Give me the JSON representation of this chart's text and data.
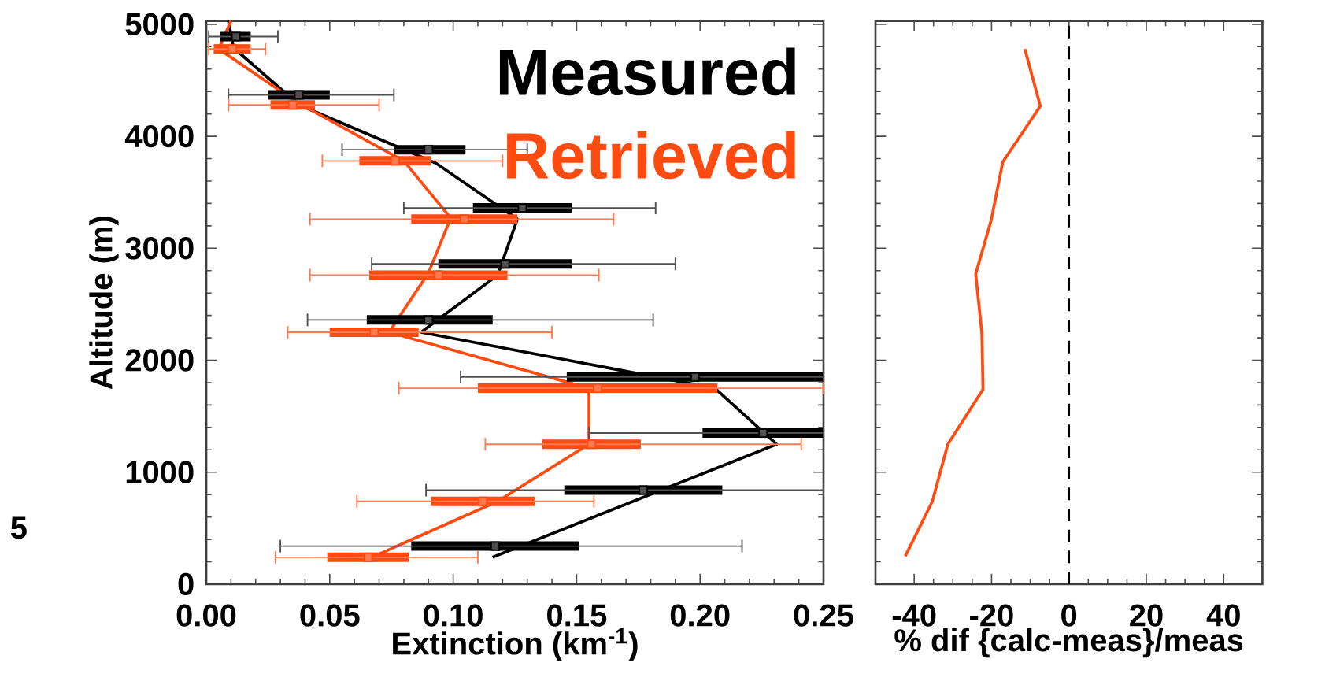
{
  "chart_data": [
    {
      "type": "line",
      "xlabel": "Extinction (km$^{-1}$)",
      "ylabel": "Altitude (m)",
      "xlim": [
        0,
        0.25
      ],
      "xticks": [
        {
          "value": 0,
          "label": "0.00"
        },
        0.05,
        {
          "value": 0.1,
          "label": "0.10"
        },
        0.15,
        {
          "value": 0.2,
          "label": "0.20"
        },
        0.25
      ],
      "ylim": [
        0,
        5030
      ],
      "yticks": [
        0,
        1000,
        2000,
        3000,
        4000,
        5000
      ],
      "legend": "top right",
      "marker": "none",
      "annotations": [
        "5"
      ],
      "series": [
        {
          "name": "Measured",
          "color": "#000000",
          "x": [
            0.009,
            0.011,
            0.0376,
            0.093,
            0.126,
            0.118,
            0.087,
            0.206,
            0.231,
            0.116
          ],
          "values": [
            5030,
            4790,
            4280,
            3760,
            3260,
            2760,
            2250,
            1750,
            1250,
            240
          ]
        },
        {
          "name": "Retrieved",
          "color": "#ff4a10",
          "x": [
            0.01,
            0.005,
            0.037,
            0.08,
            0.099,
            0.09,
            0.074,
            0.155,
            0.155,
            0.118,
            0.067
          ],
          "values": [
            5030,
            4780,
            4300,
            3780,
            3270,
            2780,
            2250,
            1750,
            1250,
            740,
            240
          ]
        },
        {
          "type": "scatter",
          "marker": "square",
          "color": "#000000",
          "x": [
            0.012,
            0.0375,
            0.09,
            0.128,
            0.121,
            0.09,
            0.198,
            0.2255,
            0.177,
            0.117
          ],
          "values": [
            4890,
            4370,
            3880,
            3360,
            2860,
            2360,
            1850,
            1350,
            840,
            340
          ],
          "xerrors": [
            [
              0.0057,
              0.018
            ],
            [
              0.025,
              0.05
            ],
            [
              0.076,
              0.105
            ],
            [
              0.108,
              0.148
            ],
            [
              0.094,
              0.148
            ],
            [
              0.065,
              0.116
            ],
            [
              0.146,
              0.25
            ],
            [
              0.201,
              0.25
            ],
            [
              0.145,
              0.209
            ],
            [
              0.083,
              0.151
            ]
          ]
        },
        {
          "type": "scatter",
          "marker": "square",
          "color": "#505050",
          "x": [
            0.012,
            0.0375,
            0.09,
            0.128,
            0.121,
            0.09,
            0.198,
            0.2255,
            0.177,
            0.117
          ],
          "values": [
            4890,
            4370,
            3880,
            3360,
            2860,
            2360,
            1850,
            1350,
            840,
            340
          ],
          "xerrors": [
            [
              0.001,
              0.029
            ],
            [
              0.009,
              0.076
            ],
            [
              0.055,
              0.13
            ],
            [
              0.08,
              0.182
            ],
            [
              0.067,
              0.19
            ],
            [
              0.041,
              0.181
            ],
            [
              0.103,
              0.25
            ],
            [
              0.155,
              0.25
            ],
            [
              0.089,
              0.25
            ],
            [
              0.03,
              0.217
            ]
          ]
        },
        {
          "type": "scatter",
          "marker": "square",
          "color": "#ff4a10",
          "x": [
            0.0105,
            0.035,
            0.0765,
            0.1045,
            0.094,
            0.068,
            0.1585,
            0.156,
            0.112,
            0.0655
          ],
          "values": [
            4780,
            4280,
            3780,
            3260,
            2760,
            2250,
            1750,
            1250,
            740,
            240
          ],
          "xerrors": [
            [
              0.003,
              0.018
            ],
            [
              0.026,
              0.044
            ],
            [
              0.062,
              0.091
            ],
            [
              0.083,
              0.126
            ],
            [
              0.066,
              0.122
            ],
            [
              0.05,
              0.086
            ],
            [
              0.11,
              0.207
            ],
            [
              0.136,
              0.176
            ],
            [
              0.091,
              0.133
            ],
            [
              0.049,
              0.082
            ]
          ]
        },
        {
          "type": "scatter",
          "marker": "square",
          "color": "#ff7a50",
          "x": [
            0.0105,
            0.035,
            0.0765,
            0.1045,
            0.094,
            0.068,
            0.1585,
            0.156,
            0.112,
            0.0655
          ],
          "values": [
            4780,
            4280,
            3780,
            3260,
            2760,
            2250,
            1750,
            1250,
            740,
            240
          ],
          "xerrors": [
            [
              0.001,
              0.024
            ],
            [
              0.009,
              0.07
            ],
            [
              0.047,
              0.12
            ],
            [
              0.042,
              0.165
            ],
            [
              0.042,
              0.159
            ],
            [
              0.033,
              0.14
            ],
            [
              0.078,
              0.25
            ],
            [
              0.113,
              0.241
            ],
            [
              0.061,
              0.157
            ],
            [
              0.028,
              0.11
            ]
          ]
        }
      ]
    },
    {
      "type": "line",
      "xlabel": "% dif {calc-meas}/meas",
      "xlim": [
        -50,
        50
      ],
      "xticks": [
        -40,
        -20,
        0,
        20,
        40
      ],
      "ylim": [
        0,
        5030
      ],
      "yticks": [
        0,
        1000,
        2000,
        3000,
        4000,
        5000
      ],
      "tick_labels": "x",
      "marker": "none",
      "ref_lines": [
        {
          "axis": "x",
          "value": 0,
          "color": "#000000",
          "line_style": "dashed"
        }
      ],
      "series": [
        {
          "color": "#ff4a10",
          "x": [
            -11.4,
            -7.4,
            -17.1,
            -20.1,
            -24.1,
            -22.5,
            -22.2,
            -31.3,
            -35.3,
            -42.3
          ],
          "values": [
            4780,
            4270,
            3770,
            3250,
            2770,
            2240,
            1740,
            1250,
            740,
            250
          ]
        }
      ]
    }
  ]
}
